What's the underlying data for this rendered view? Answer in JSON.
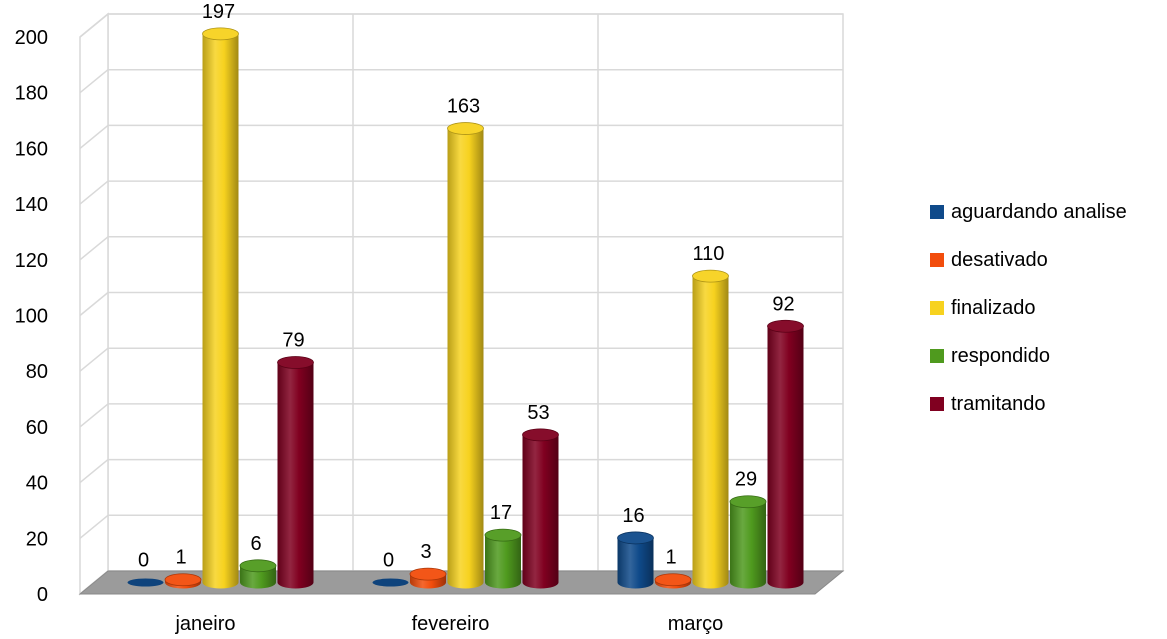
{
  "chart_data": {
    "type": "bar",
    "categories": [
      "janeiro",
      "fevereiro",
      "março"
    ],
    "series": [
      {
        "name": "aguardando analise",
        "values": [
          0,
          0,
          16
        ],
        "color": "#0f4a8a"
      },
      {
        "name": "desativado",
        "values": [
          1,
          3,
          1
        ],
        "color": "#f24d0c"
      },
      {
        "name": "finalizado",
        "values": [
          197,
          163,
          110
        ],
        "color": "#f7d21f"
      },
      {
        "name": "respondido",
        "values": [
          6,
          17,
          29
        ],
        "color": "#4f9a1e"
      },
      {
        "name": "tramitando",
        "values": [
          79,
          53,
          92
        ],
        "color": "#800020"
      }
    ],
    "ylim": [
      0,
      200
    ],
    "yticks": [
      "0",
      "20",
      "40",
      "60",
      "80",
      "100",
      "120",
      "140",
      "160",
      "180",
      "200"
    ],
    "grid": true,
    "legend_position": "right",
    "style": "3d-cylinder"
  }
}
